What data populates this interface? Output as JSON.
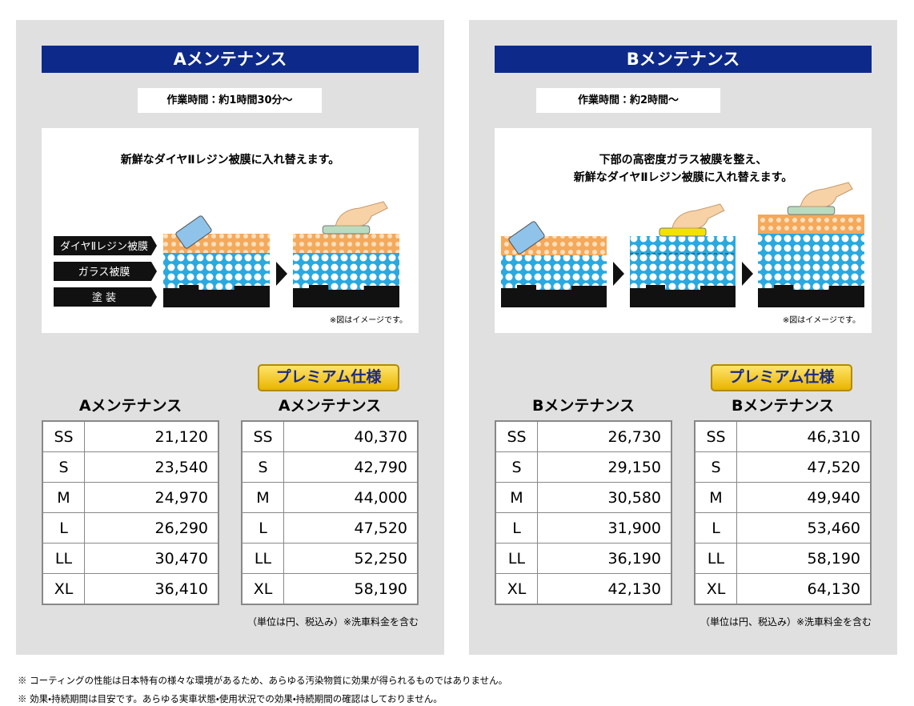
{
  "panels": [
    {
      "title": "Aメンテナンス",
      "time": "作業時間：約1時間30分～",
      "description": [
        "新鮮なダイヤⅡレジン被膜に入れ替えます。"
      ],
      "layers": [
        "ダイヤⅡレジン被膜",
        "ガラス被膜",
        "塗 装"
      ],
      "image_note": "※図はイメージです。",
      "tables": [
        {
          "title": "Aメンテナンス",
          "rows": [
            [
              "SS",
              "21,120"
            ],
            [
              "S",
              "23,540"
            ],
            [
              "M",
              "24,970"
            ],
            [
              "L",
              "26,290"
            ],
            [
              "LL",
              "30,470"
            ],
            [
              "XL",
              "36,410"
            ]
          ]
        },
        {
          "badge": "プレミアム仕様",
          "title": "Aメンテナンス",
          "rows": [
            [
              "SS",
              "40,370"
            ],
            [
              "S",
              "42,790"
            ],
            [
              "M",
              "44,000"
            ],
            [
              "L",
              "47,520"
            ],
            [
              "LL",
              "52,250"
            ],
            [
              "XL",
              "58,190"
            ]
          ]
        }
      ],
      "unit_note": "（単位は円、税込み）※洗車料金を含む"
    },
    {
      "title": "Bメンテナンス",
      "time": "作業時間：約2時間～",
      "description": [
        "下部の高密度ガラス被膜を整え、",
        "新鮮なダイヤⅡレジン被膜に入れ替えます。"
      ],
      "image_note": "※図はイメージです。",
      "tables": [
        {
          "title": "Bメンテナンス",
          "rows": [
            [
              "SS",
              "26,730"
            ],
            [
              "S",
              "29,150"
            ],
            [
              "M",
              "30,580"
            ],
            [
              "L",
              "31,900"
            ],
            [
              "LL",
              "36,190"
            ],
            [
              "XL",
              "42,130"
            ]
          ]
        },
        {
          "badge": "プレミアム仕様",
          "title": "Bメンテナンス",
          "rows": [
            [
              "SS",
              "46,310"
            ],
            [
              "S",
              "47,520"
            ],
            [
              "M",
              "49,940"
            ],
            [
              "L",
              "53,460"
            ],
            [
              "LL",
              "58,190"
            ],
            [
              "XL",
              "64,130"
            ]
          ]
        }
      ],
      "unit_note": "（単位は円、税込み）※洗車料金を含む"
    }
  ],
  "footnotes": [
    "※ コーティングの性能は日本特有の様々な環境があるため、あらゆる汚染物質に効果が得られるものではありません。",
    "※ 効果・持続期間は目安です。あらゆる実車状態・使用状況での効果・持続期間の確認はしておりません。"
  ]
}
